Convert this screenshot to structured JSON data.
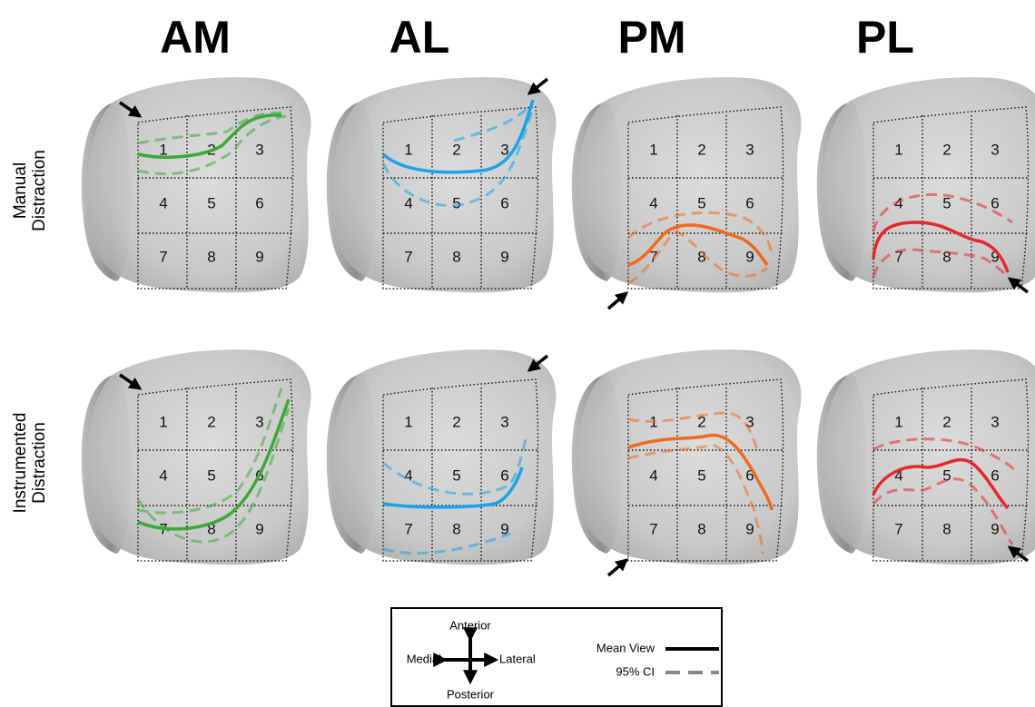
{
  "column_titles": [
    "AM",
    "AL",
    "PM",
    "PL"
  ],
  "row_labels": [
    [
      "Manual",
      "Distraction"
    ],
    [
      "Instrumented",
      "Distraction"
    ]
  ],
  "cell_labels": [
    "1",
    "2",
    "3",
    "4",
    "5",
    "6",
    "7",
    "8",
    "9"
  ],
  "legend": {
    "anterior": "Anterior",
    "medial": "Medial",
    "lateral": "Lateral",
    "posterior": "Posterior",
    "mean": "Mean View",
    "ci": "95% CI"
  }
}
